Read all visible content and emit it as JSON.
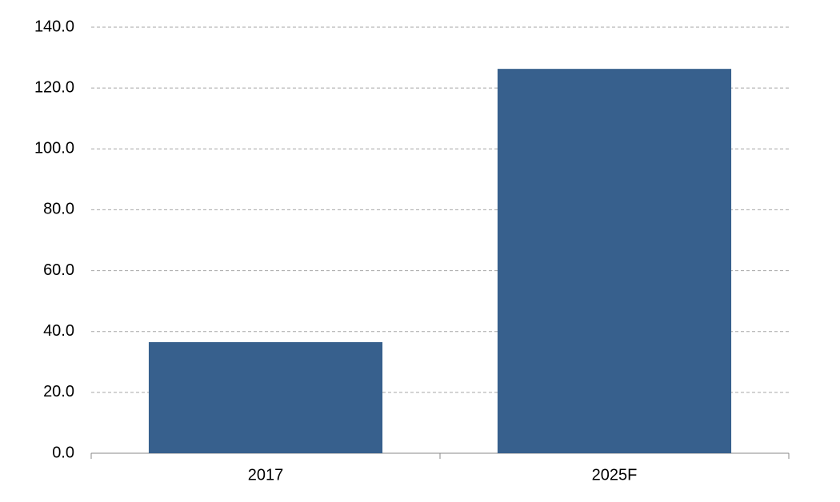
{
  "chart_data": {
    "type": "bar",
    "categories": [
      "2017",
      "2025F"
    ],
    "values": [
      36.5,
      126.3
    ],
    "color": "#37608d",
    "ylim": [
      0,
      140
    ],
    "yticks": [
      {
        "value": 0,
        "label": "0.0"
      },
      {
        "value": 20,
        "label": "20.0"
      },
      {
        "value": 40,
        "label": "40.0"
      },
      {
        "value": 60,
        "label": "60.0"
      },
      {
        "value": 80,
        "label": "80.0"
      },
      {
        "value": 100,
        "label": "100.0"
      },
      {
        "value": 120,
        "label": "120.0"
      },
      {
        "value": 140,
        "label": "140.0"
      }
    ],
    "grid": true
  }
}
